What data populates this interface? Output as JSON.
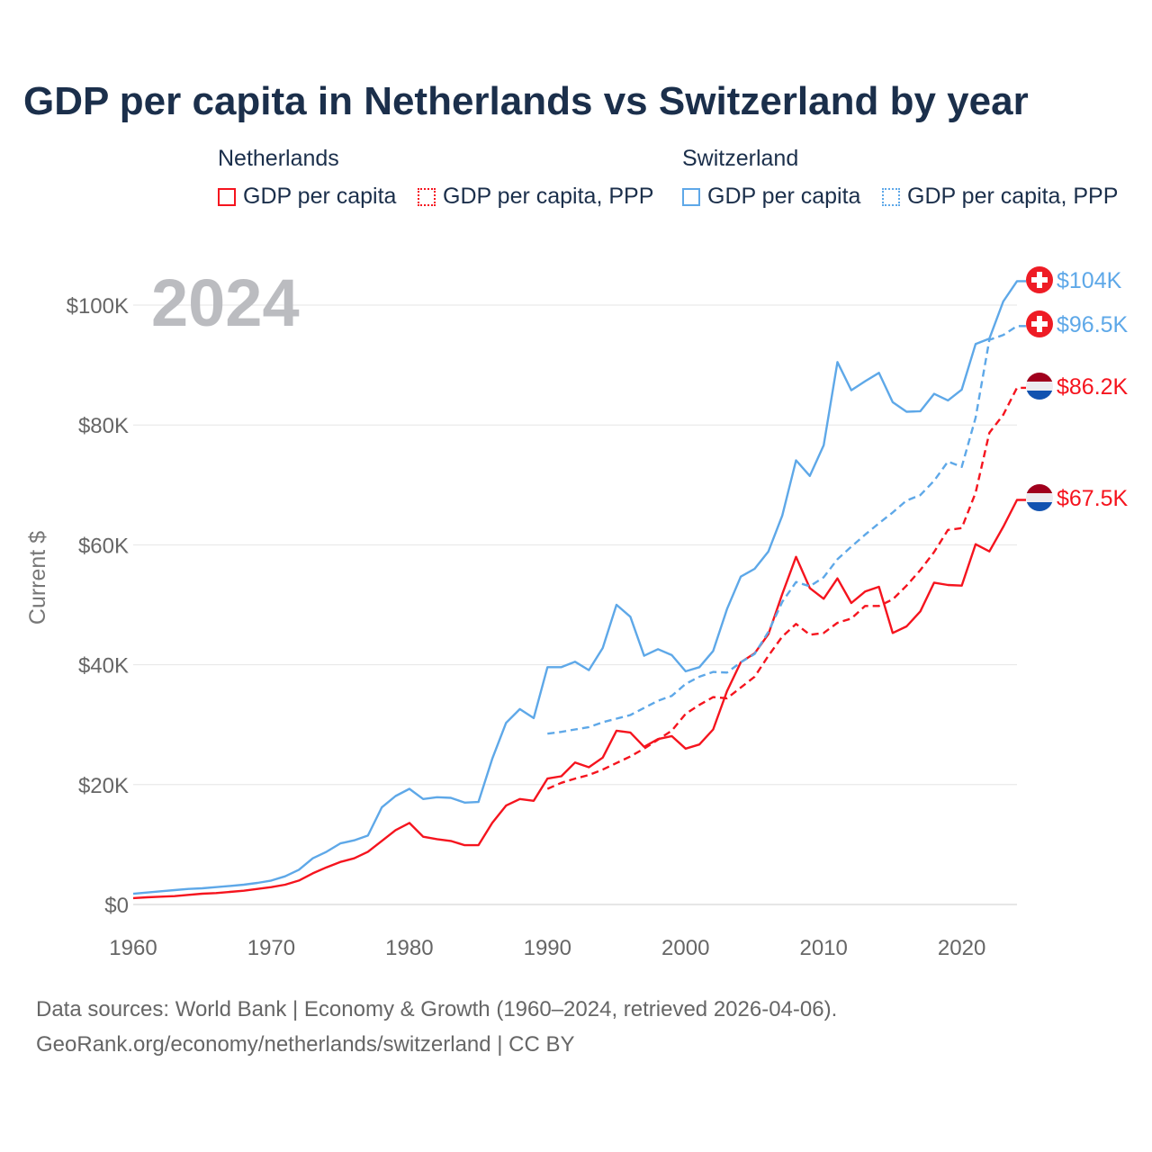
{
  "title": "GDP per capita in Netherlands vs Switzerland by year",
  "legend": {
    "groups": [
      {
        "name": "Netherlands",
        "items": [
          "GDP per capita",
          "GDP per capita, PPP"
        ]
      },
      {
        "name": "Switzerland",
        "items": [
          "GDP per capita",
          "GDP per capita, PPP"
        ]
      }
    ]
  },
  "year_watermark": "2024",
  "footer": {
    "line1": "Data sources: World Bank | Economy & Growth (1960–2024, retrieved 2026-04-06).",
    "line2": "GeoRank.org/economy/netherlands/switzerland | CC BY"
  },
  "colors": {
    "netherlands": "#f5141e",
    "switzerland": "#5ea8e8",
    "title": "#1b2f4b"
  },
  "chart_data": {
    "type": "line",
    "ylabel": "Current $",
    "xlim": [
      1960,
      2024
    ],
    "ylim": [
      0,
      100000
    ],
    "xticks": [
      1960,
      1970,
      1980,
      1990,
      2000,
      2010,
      2020
    ],
    "xtick_labels": [
      "1960",
      "1970",
      "1980",
      "1990",
      "2000",
      "2010",
      "2020"
    ],
    "yticks": [
      0,
      20000,
      40000,
      60000,
      80000,
      100000
    ],
    "ytick_labels": [
      "$0",
      "$20K",
      "$40K",
      "$60K",
      "$80K",
      "$100K"
    ],
    "grid": true,
    "series": [
      {
        "name": "Netherlands GDP per capita",
        "country": "Netherlands",
        "style": "solid",
        "start_year": 1960,
        "end_label": "$67.5K",
        "values_k": [
          1.07,
          1.2,
          1.3,
          1.4,
          1.6,
          1.8,
          1.9,
          2.1,
          2.3,
          2.6,
          2.9,
          3.3,
          4.0,
          5.2,
          6.2,
          7.1,
          7.7,
          8.8,
          10.6,
          12.4,
          13.6,
          11.3,
          10.9,
          10.6,
          9.9,
          9.9,
          13.6,
          16.5,
          17.6,
          17.3,
          21.0,
          21.4,
          23.7,
          22.9,
          24.5,
          29.0,
          28.7,
          26.3,
          27.6,
          28.1,
          26.0,
          26.7,
          29.2,
          35.6,
          40.4,
          41.9,
          45.1,
          51.8,
          58.0,
          52.8,
          51.0,
          54.4,
          50.3,
          52.2,
          53.0,
          45.3,
          46.4,
          48.9,
          53.7,
          53.3,
          53.2,
          60.1,
          58.9,
          63.0,
          67.5
        ]
      },
      {
        "name": "Netherlands GDP per capita, PPP",
        "country": "Netherlands",
        "style": "dashed",
        "start_year": 1990,
        "end_label": "$86.2K",
        "values_k": [
          19.3,
          20.3,
          21.0,
          21.6,
          22.5,
          23.6,
          24.7,
          26.0,
          27.5,
          29.0,
          31.8,
          33.3,
          34.6,
          34.4,
          36.2,
          38.0,
          41.5,
          44.7,
          46.8,
          45.0,
          45.3,
          47.0,
          47.7,
          49.8,
          49.8,
          50.9,
          53.2,
          55.8,
          58.8,
          62.5,
          62.8,
          68.7,
          78.7,
          81.7,
          86.2
        ]
      },
      {
        "name": "Switzerland GDP per capita",
        "country": "Switzerland",
        "style": "solid",
        "start_year": 1960,
        "end_label": "$104K",
        "values_k": [
          1.79,
          2.0,
          2.2,
          2.4,
          2.6,
          2.7,
          2.9,
          3.1,
          3.3,
          3.6,
          4.0,
          4.7,
          5.8,
          7.7,
          8.8,
          10.2,
          10.7,
          11.5,
          16.2,
          18.1,
          19.3,
          17.6,
          17.9,
          17.8,
          17.0,
          17.1,
          24.3,
          30.3,
          32.6,
          31.1,
          39.6,
          39.6,
          40.5,
          39.1,
          42.8,
          50.0,
          48.0,
          41.5,
          42.6,
          41.6,
          38.9,
          39.6,
          42.3,
          49.3,
          54.7,
          56.0,
          58.9,
          64.9,
          74.1,
          71.5,
          76.6,
          90.5,
          85.8,
          87.3,
          88.7,
          83.8,
          82.2,
          82.3,
          85.2,
          84.1,
          85.9,
          93.5,
          94.4,
          100.6,
          104.0
        ]
      },
      {
        "name": "Switzerland GDP per capita, PPP",
        "country": "Switzerland",
        "style": "dashed",
        "start_year": 1990,
        "end_label": "$96.5K",
        "values_k": [
          28.5,
          28.8,
          29.2,
          29.6,
          30.4,
          31.0,
          31.6,
          32.8,
          34.0,
          34.8,
          36.8,
          38.0,
          38.8,
          38.7,
          40.4,
          41.8,
          45.5,
          50.5,
          53.8,
          53.1,
          54.6,
          57.6,
          59.7,
          61.7,
          63.6,
          65.4,
          67.4,
          68.3,
          70.7,
          73.9,
          73.0,
          81.2,
          94.2,
          95.0,
          96.5
        ]
      }
    ]
  }
}
